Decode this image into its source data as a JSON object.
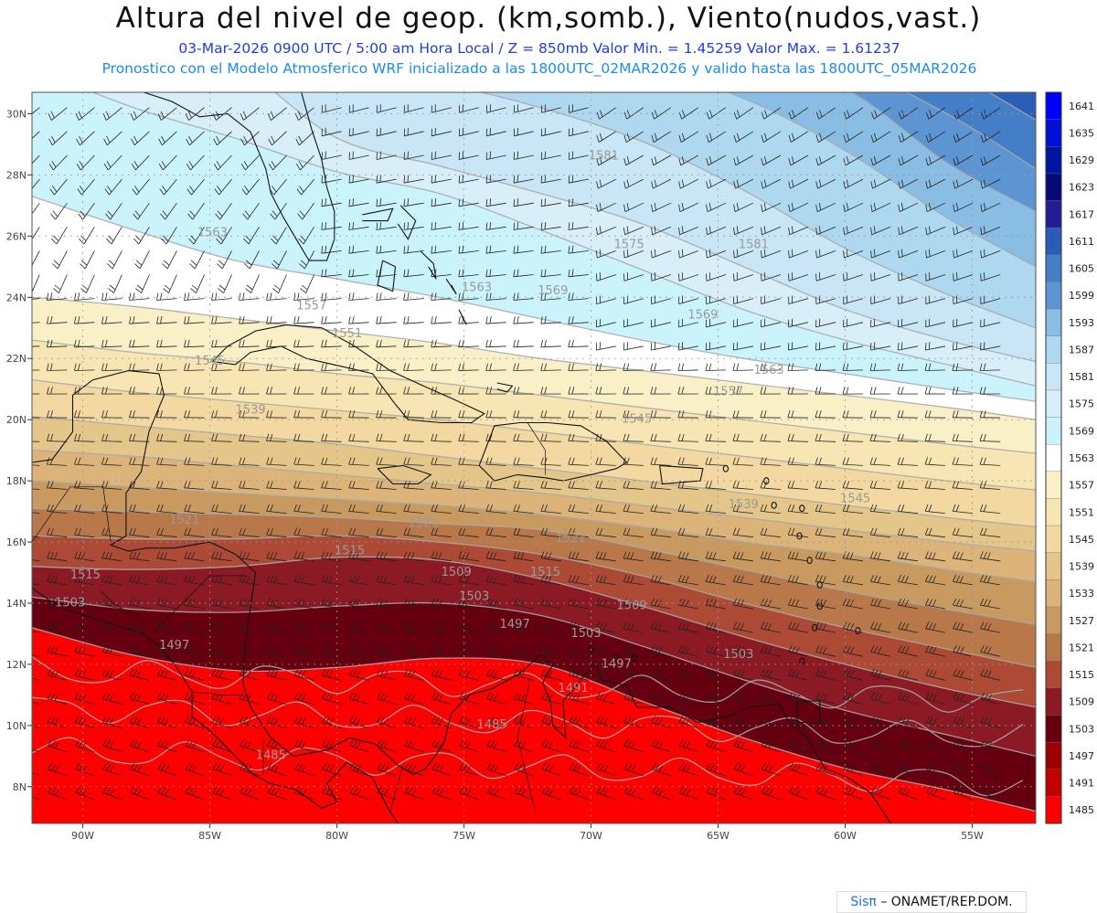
{
  "header": {
    "title": "Altura del nivel de geop. (km,somb.), Viento(nudos,vast.)",
    "subtitle_line1": "03-Mar-2026  0900 UTC / 5:00 am Hora Local / Z = 850mb     Valor Min. = 1.45259  Valor Max. = 1.61237",
    "subtitle_line2": "Pronostico con el Modelo Atmosferico WRF inicializado a las 1800UTC_02MAR2026 y valido hasta las  1800UTC_05MAR2026"
  },
  "map": {
    "extent": {
      "lon_min": -92,
      "lon_max": -52.5,
      "lat_min": 6.8,
      "lat_max": 30.7
    },
    "lat_labels": [
      "30N",
      "28N",
      "26N",
      "24N",
      "22N",
      "20N",
      "18N",
      "16N",
      "14N",
      "12N",
      "10N",
      "8N"
    ],
    "lat_values": [
      30,
      28,
      26,
      24,
      22,
      20,
      18,
      16,
      14,
      12,
      10,
      8
    ],
    "lon_labels": [
      "90W",
      "85W",
      "80W",
      "75W",
      "70W",
      "65W",
      "60W",
      "55W"
    ],
    "lon_values": [
      -90,
      -85,
      -80,
      -75,
      -70,
      -65,
      -60,
      -55
    ],
    "contour_labels": [
      {
        "text": "1581",
        "lon": -69.5,
        "lat": 28.5
      },
      {
        "text": "1575",
        "lon": -68.5,
        "lat": 25.6
      },
      {
        "text": "1581",
        "lon": -63.6,
        "lat": 25.6
      },
      {
        "text": "1569",
        "lon": -71.5,
        "lat": 24.1
      },
      {
        "text": "1569",
        "lon": -65.6,
        "lat": 23.3
      },
      {
        "text": "1563",
        "lon": -84.9,
        "lat": 26.0
      },
      {
        "text": "1563",
        "lon": -74.5,
        "lat": 24.2
      },
      {
        "text": "1563",
        "lon": -63.0,
        "lat": 21.5
      },
      {
        "text": "1557",
        "lon": -81.0,
        "lat": 23.6
      },
      {
        "text": "1557",
        "lon": -64.6,
        "lat": 20.8
      },
      {
        "text": "1551",
        "lon": -79.6,
        "lat": 22.7
      },
      {
        "text": "1545",
        "lon": -85.0,
        "lat": 21.8
      },
      {
        "text": "1545",
        "lon": -68.2,
        "lat": 19.9
      },
      {
        "text": "1545",
        "lon": -59.6,
        "lat": 17.3
      },
      {
        "text": "1539",
        "lon": -83.4,
        "lat": 20.2
      },
      {
        "text": "1539",
        "lon": -64.0,
        "lat": 17.1
      },
      {
        "text": "1521",
        "lon": -86.0,
        "lat": 16.6
      },
      {
        "text": "1521",
        "lon": -76.6,
        "lat": 16.5
      },
      {
        "text": "1521",
        "lon": -70.8,
        "lat": 16.0
      },
      {
        "text": "1515",
        "lon": -79.5,
        "lat": 15.6
      },
      {
        "text": "1515",
        "lon": -89.9,
        "lat": 14.8
      },
      {
        "text": "1515",
        "lon": -71.8,
        "lat": 14.9
      },
      {
        "text": "1509",
        "lon": -75.3,
        "lat": 14.9
      },
      {
        "text": "1509",
        "lon": -68.4,
        "lat": 13.8
      },
      {
        "text": "1503",
        "lon": -90.5,
        "lat": 13.9
      },
      {
        "text": "1503",
        "lon": -74.6,
        "lat": 14.1
      },
      {
        "text": "1503",
        "lon": -70.2,
        "lat": 12.9
      },
      {
        "text": "1503",
        "lon": -64.2,
        "lat": 12.2
      },
      {
        "text": "1497",
        "lon": -86.4,
        "lat": 12.5
      },
      {
        "text": "1497",
        "lon": -73.0,
        "lat": 13.2
      },
      {
        "text": "1497",
        "lon": -69.0,
        "lat": 11.9
      },
      {
        "text": "1491",
        "lon": -70.7,
        "lat": 11.1
      },
      {
        "text": "1485",
        "lon": -73.9,
        "lat": 9.9
      },
      {
        "text": "1485",
        "lon": -82.6,
        "lat": 8.9
      }
    ]
  },
  "legend": {
    "levels": [
      "1641",
      "1635",
      "1629",
      "1623",
      "1617",
      "1611",
      "1605",
      "1599",
      "1593",
      "1587",
      "1581",
      "1575",
      "1569",
      "1563",
      "1557",
      "1551",
      "1545",
      "1539",
      "1533",
      "1527",
      "1521",
      "1515",
      "1509",
      "1503",
      "1497",
      "1491",
      "1485"
    ],
    "colors": [
      "#0000ff",
      "#0010d8",
      "#00159f",
      "#050a78",
      "#231c96",
      "#2a5db5",
      "#437ec6",
      "#5c95d1",
      "#89bde3",
      "#aed8ef",
      "#c8e6f6",
      "#d8eef8",
      "#cbf3fb",
      "#ffffff",
      "#faf0c8",
      "#f7e6b3",
      "#f3d9a1",
      "#e5c68a",
      "#dcb47a",
      "#c89a60",
      "#b8784a",
      "#ad4a36",
      "#8b1a24",
      "#660010",
      "#9c0000",
      "#c20000",
      "#ff0000"
    ]
  },
  "credit": {
    "logo": "Sisπ",
    "text": " – ONAMET/REP.DOM."
  }
}
